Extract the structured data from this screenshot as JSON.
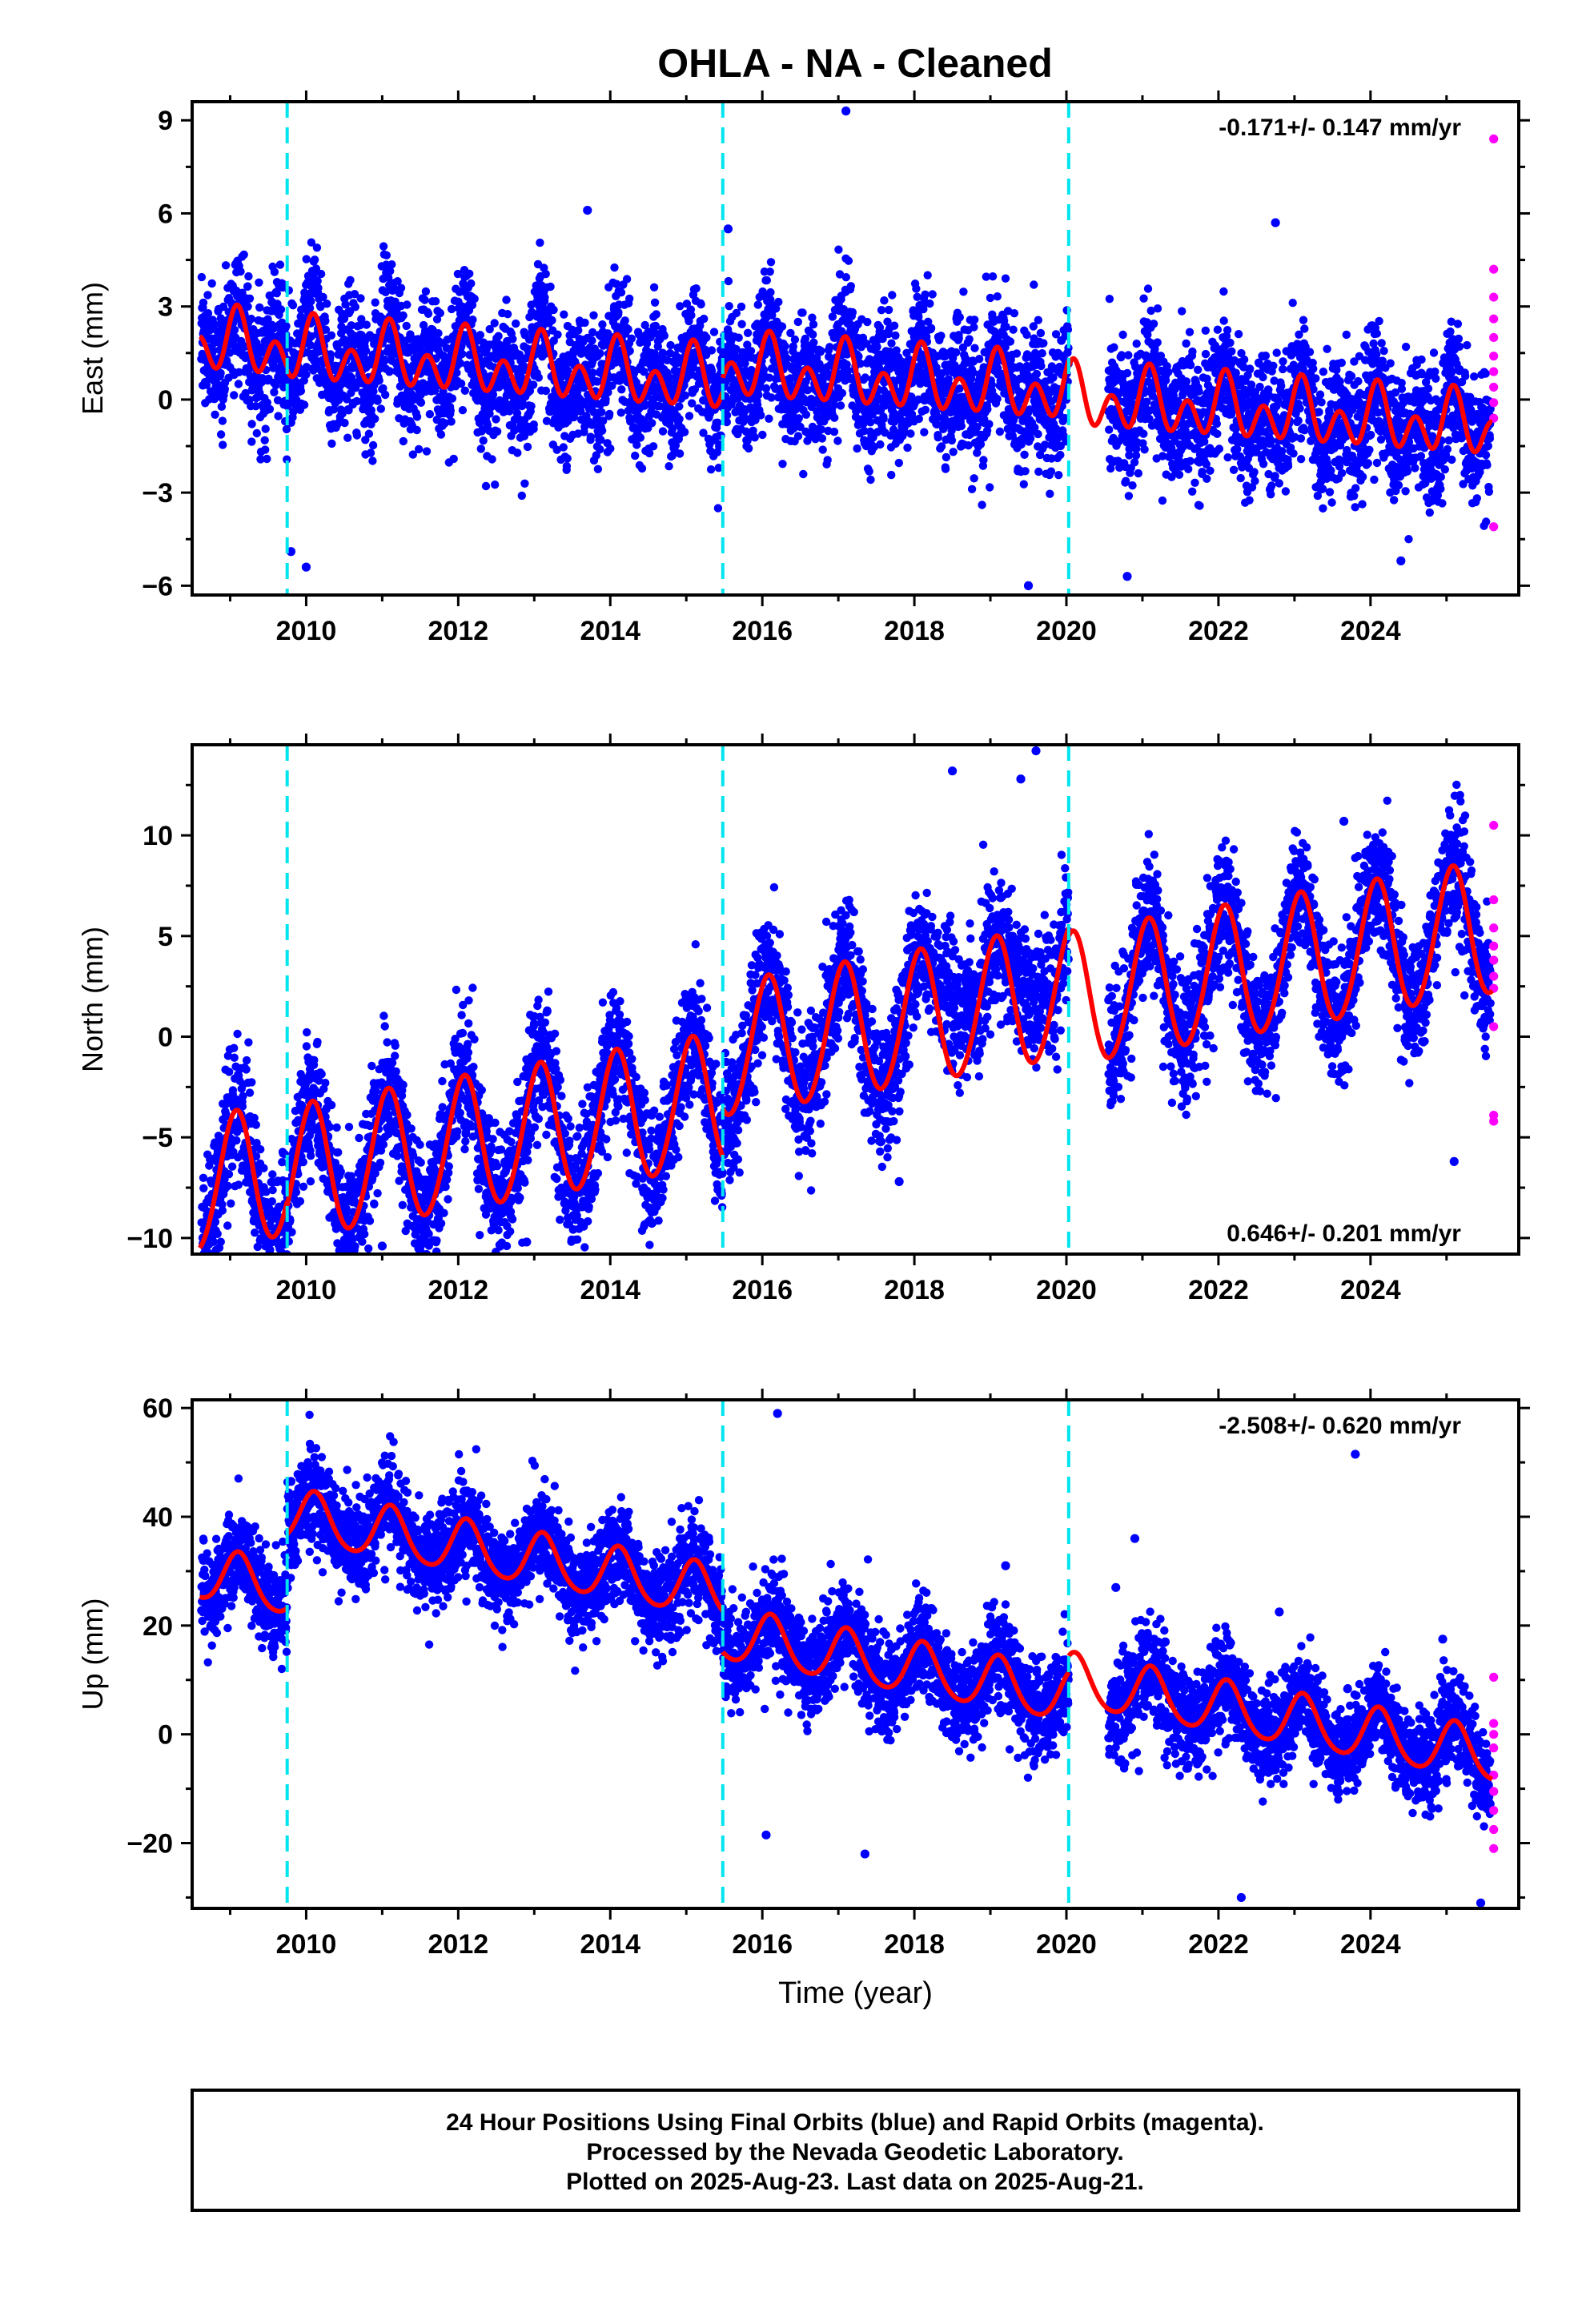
{
  "title": "OHLA  - NA - Cleaned",
  "colors": {
    "final_points": "#0000ff",
    "rapid_points": "#ff00ff",
    "model": "#ff0000",
    "steps": "#00e5ee"
  },
  "chart_data": [
    {
      "type": "scatter",
      "ylabel": "East (mm)",
      "xlabel": "",
      "xlim": [
        2008.5,
        2025.95
      ],
      "ylim": [
        -6.3,
        9.6
      ],
      "yticks": [
        -6,
        -3,
        0,
        3,
        6,
        9
      ],
      "xticks": [
        2010,
        2012,
        2014,
        2016,
        2018,
        2020,
        2022,
        2024
      ],
      "steps": [
        2009.75,
        2015.48,
        2020.03
      ],
      "rate_text": "-0.171+/- 0.147 mm/yr",
      "rate_position": "top-right",
      "model": {
        "segments": [
          {
            "start": 2008.6,
            "end": 2009.75,
            "offset": 0.4
          },
          {
            "start": 2009.75,
            "end": 2015.48,
            "offset": 0.3
          },
          {
            "start": 2015.48,
            "end": 2020.03,
            "offset": 0.75
          },
          {
            "start": 2020.03,
            "end": 2025.6,
            "offset": 0.55
          }
        ],
        "trend": -0.171,
        "annual_amp": 0.55,
        "annual_phase": 1.0,
        "semi_amp": 0.75,
        "semi_phase": 0.4
      },
      "scatter_sd": 1.05,
      "outliers": [
        [
          2017.1,
          9.3
        ],
        [
          2013.7,
          6.1
        ],
        [
          2022.75,
          5.7
        ],
        [
          2015.55,
          5.5
        ],
        [
          2010.0,
          -5.4
        ],
        [
          2019.5,
          -6.0
        ],
        [
          2020.8,
          -5.7
        ],
        [
          2024.4,
          -5.2
        ],
        [
          2009.8,
          -4.9
        ]
      ],
      "rapid_points": [
        [
          2025.62,
          8.4
        ],
        [
          2025.62,
          4.2
        ],
        [
          2025.62,
          3.3
        ],
        [
          2025.62,
          2.6
        ],
        [
          2025.62,
          2.0
        ],
        [
          2025.62,
          1.4
        ],
        [
          2025.62,
          0.9
        ],
        [
          2025.62,
          0.4
        ],
        [
          2025.62,
          -0.1
        ],
        [
          2025.62,
          -0.6
        ],
        [
          2025.62,
          -4.1
        ]
      ]
    },
    {
      "type": "scatter",
      "ylabel": "North (mm)",
      "xlabel": "",
      "xlim": [
        2008.5,
        2025.95
      ],
      "ylim": [
        -10.8,
        14.5
      ],
      "yticks": [
        -10,
        -5,
        0,
        5,
        10
      ],
      "xticks": [
        2010,
        2012,
        2014,
        2016,
        2018,
        2020,
        2022,
        2024
      ],
      "steps": [
        2009.75,
        2015.48,
        2020.03
      ],
      "rate_text": "0.646+/- 0.201 mm/yr",
      "rate_position": "bottom-right",
      "model": {
        "segments": [
          {
            "start": 2008.6,
            "end": 2009.75,
            "offset": -2.0
          },
          {
            "start": 2009.75,
            "end": 2015.48,
            "offset": -2.2
          },
          {
            "start": 2015.48,
            "end": 2020.03,
            "offset": 0.2
          },
          {
            "start": 2020.03,
            "end": 2025.6,
            "offset": -0.2
          }
        ],
        "trend": 0.646,
        "annual_amp": 3.3,
        "annual_phase": 1.1,
        "semi_amp": 0.2,
        "semi_phase": 0.0
      },
      "scatter_sd": 1.6,
      "outliers": [
        [
          2019.6,
          14.2
        ],
        [
          2018.5,
          13.2
        ],
        [
          2019.4,
          12.8
        ],
        [
          2023.65,
          10.7
        ],
        [
          2011.0,
          -10.4
        ],
        [
          2012.9,
          -10.2
        ],
        [
          2008.8,
          -9.2
        ],
        [
          2025.1,
          -6.2
        ],
        [
          2017.8,
          -7.2
        ]
      ],
      "rapid_points": [
        [
          2025.62,
          10.5
        ],
        [
          2025.62,
          6.8
        ],
        [
          2025.62,
          5.4
        ],
        [
          2025.62,
          4.5
        ],
        [
          2025.62,
          3.8
        ],
        [
          2025.62,
          3.0
        ],
        [
          2025.62,
          2.4
        ],
        [
          2025.62,
          0.5
        ],
        [
          2025.62,
          -3.9
        ],
        [
          2025.62,
          -4.2
        ]
      ]
    },
    {
      "type": "scatter",
      "ylabel": "Up (mm)",
      "xlabel": "Time (year)",
      "xlim": [
        2008.5,
        2025.95
      ],
      "ylim": [
        -32.0,
        61.5
      ],
      "yticks": [
        -20,
        0,
        20,
        40,
        60
      ],
      "xticks": [
        2010,
        2012,
        2014,
        2016,
        2018,
        2020,
        2022,
        2024
      ],
      "steps": [
        2009.75,
        2015.48,
        2020.03
      ],
      "rate_text": "-2.508+/- 0.620 mm/yr",
      "rate_position": "top-right",
      "model": {
        "segments": [
          {
            "start": 2008.6,
            "end": 2009.75,
            "offset": 8.4
          },
          {
            "start": 2009.75,
            "end": 2015.48,
            "offset": 22.0
          },
          {
            "start": 2015.48,
            "end": 2020.03,
            "offset": 14.5
          },
          {
            "start": 2020.03,
            "end": 2025.6,
            "offset": 17.5
          }
        ],
        "trend": -2.508,
        "annual_amp": 4.8,
        "annual_phase": 0.85,
        "semi_amp": 0.6,
        "semi_phase": 0.3
      },
      "scatter_sd": 4.5,
      "outliers": [
        [
          2016.2,
          59.0
        ],
        [
          2023.8,
          51.5
        ],
        [
          2009.8,
          46.5
        ],
        [
          2009.8,
          44.0
        ],
        [
          2009.8,
          40.0
        ],
        [
          2012.95,
          41.0
        ],
        [
          2020.9,
          36.0
        ],
        [
          2020.65,
          27.0
        ],
        [
          2019.2,
          31.0
        ],
        [
          2022.8,
          22.5
        ],
        [
          2024.95,
          17.5
        ],
        [
          2021.3,
          17.0
        ],
        [
          2016.05,
          -18.5
        ],
        [
          2017.35,
          -22.0
        ],
        [
          2022.3,
          -30.0
        ],
        [
          2025.45,
          -31.0
        ]
      ],
      "rapid_points": [
        [
          2025.62,
          10.5
        ],
        [
          2025.62,
          2.0
        ],
        [
          2025.62,
          0.0
        ],
        [
          2025.62,
          -2.5
        ],
        [
          2025.62,
          -7.5
        ],
        [
          2025.62,
          -10.5
        ],
        [
          2025.62,
          -14.0
        ],
        [
          2025.62,
          -17.5
        ],
        [
          2025.62,
          -21.0
        ]
      ]
    }
  ],
  "footer": {
    "line1": "24 Hour Positions Using Final Orbits (blue) and Rapid Orbits (magenta).",
    "line2": "Processed by the Nevada Geodetic Laboratory.",
    "line3": "Plotted on 2025-Aug-23. Last data on 2025-Aug-21."
  }
}
